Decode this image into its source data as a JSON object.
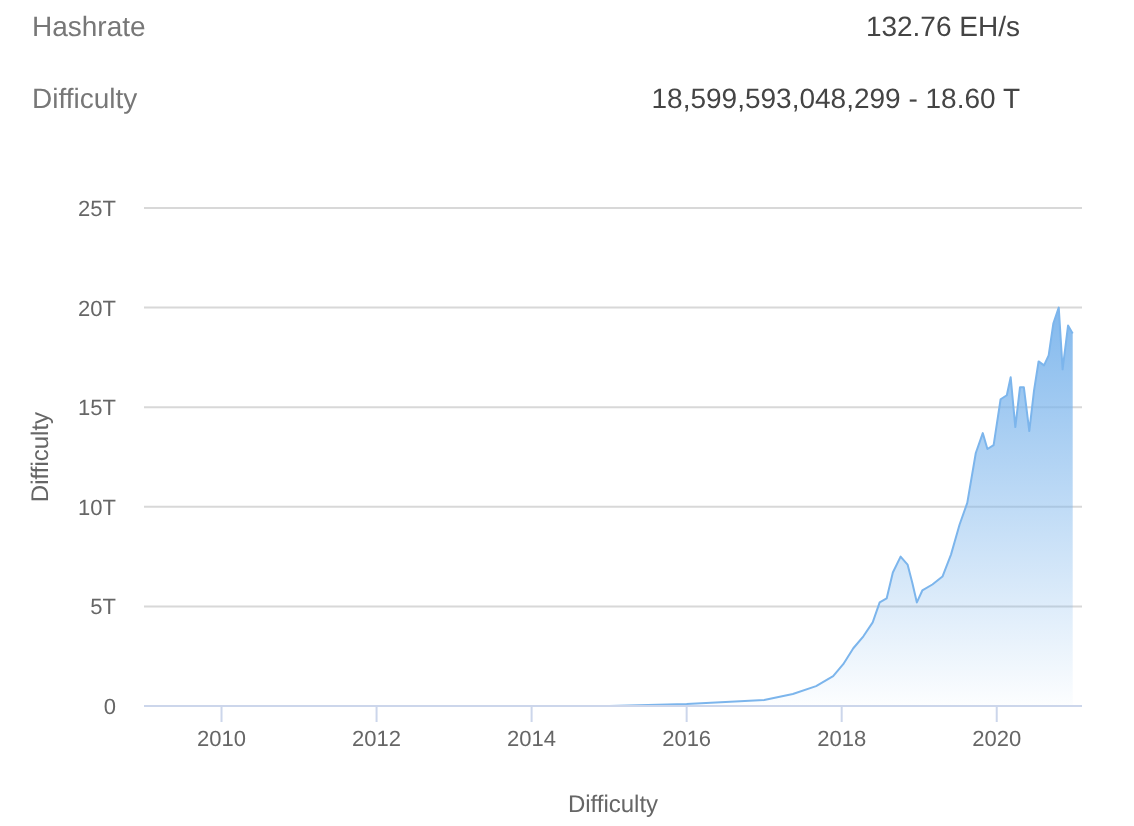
{
  "chart_data": {
    "type": "area",
    "xlabel": "Difficulty",
    "ylabel": "Difficulty",
    "annotations": [
      "Hashrate",
      "132.76 EH/s",
      "Difficulty",
      "18,599,593,048,299 - 18.60 T"
    ],
    "x": [
      2009.0,
      2011.0,
      2013.0,
      2014.0,
      2015.0,
      2016.0,
      2016.5,
      2017.0,
      2017.37,
      2017.67,
      2017.89,
      2018.02,
      2018.15,
      2018.28,
      2018.4,
      2018.49,
      2018.58,
      2018.66,
      2018.76,
      2018.85,
      2018.91,
      2018.97,
      2019.04,
      2019.17,
      2019.3,
      2019.41,
      2019.52,
      2019.62,
      2019.73,
      2019.82,
      2019.88,
      2019.96,
      2020.05,
      2020.13,
      2020.18,
      2020.24,
      2020.3,
      2020.35,
      2020.42,
      2020.48,
      2020.54,
      2020.61,
      2020.67,
      2020.73,
      2020.8,
      2020.85,
      2020.92,
      2020.98
    ],
    "series": [
      {
        "color": "#7cb5ec",
        "values": [
          0,
          0,
          0,
          0,
          0,
          0.1,
          0.2,
          0.3,
          0.6,
          1.0,
          1.5,
          2.1,
          2.9,
          3.5,
          4.2,
          5.2,
          5.4,
          6.7,
          7.5,
          7.1,
          6.2,
          5.2,
          5.8,
          6.1,
          6.5,
          7.6,
          9.1,
          10.2,
          12.7,
          13.7,
          12.9,
          13.1,
          15.4,
          15.6,
          16.5,
          14.0,
          16.0,
          16.0,
          13.8,
          15.8,
          17.3,
          17.1,
          17.6,
          19.2,
          20.0,
          16.9,
          19.1,
          18.7
        ]
      }
    ],
    "xlim": [
      2009,
      2021.1
    ],
    "xticks": [
      2010,
      2012,
      2014,
      2016,
      2018,
      2020
    ],
    "ylim": [
      0,
      25
    ],
    "yticks": [
      {
        "value": 0,
        "label": "0"
      },
      {
        "value": 5,
        "label": "5T"
      },
      {
        "value": 10,
        "label": "10T"
      },
      {
        "value": 15,
        "label": "15T"
      },
      {
        "value": 20,
        "label": "20T"
      },
      {
        "value": 25,
        "label": "25T"
      }
    ],
    "grid": "y",
    "marker": "none"
  }
}
